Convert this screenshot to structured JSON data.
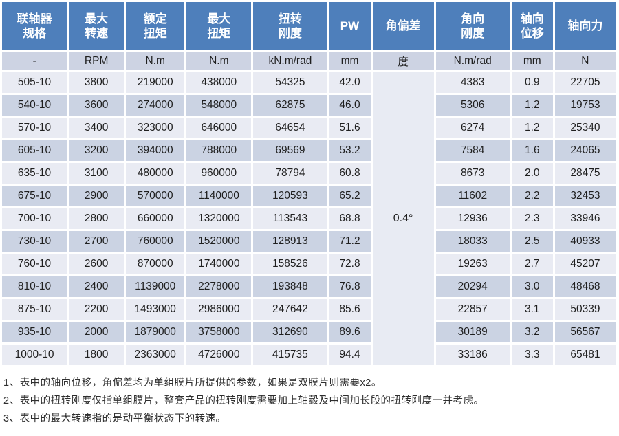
{
  "table": {
    "headers": [
      "联轴器\n规格",
      "最大\n转速",
      "额定\n扭矩",
      "最大\n扭矩",
      "扭转\n刚度",
      "PW",
      "角偏差",
      "角向\n刚度",
      "轴向\n位移",
      "轴向力"
    ],
    "units": [
      "-",
      "RPM",
      "N.m",
      "N.m",
      "kN.m/rad",
      "mm",
      "度",
      "N.m/rad",
      "mm",
      "N"
    ],
    "angular_deviation_value": "0.4°",
    "rows": [
      [
        "505-10",
        "3800",
        "219000",
        "438000",
        "54325",
        "42.0",
        "4383",
        "0.9",
        "22705"
      ],
      [
        "540-10",
        "3600",
        "274000",
        "548000",
        "62875",
        "46.0",
        "5306",
        "1.2",
        "19753"
      ],
      [
        "570-10",
        "3400",
        "323000",
        "646000",
        "64654",
        "51.6",
        "6274",
        "1.2",
        "25340"
      ],
      [
        "605-10",
        "3200",
        "394000",
        "788000",
        "69569",
        "53.2",
        "7584",
        "1.6",
        "24065"
      ],
      [
        "635-10",
        "3100",
        "480000",
        "960000",
        "78794",
        "60.8",
        "8673",
        "2.0",
        "28475"
      ],
      [
        "675-10",
        "2900",
        "570000",
        "1140000",
        "120593",
        "65.2",
        "11602",
        "2.2",
        "32453"
      ],
      [
        "700-10",
        "2800",
        "660000",
        "1320000",
        "113543",
        "68.8",
        "12936",
        "2.3",
        "33946"
      ],
      [
        "730-10",
        "2700",
        "760000",
        "1520000",
        "128913",
        "71.2",
        "18033",
        "2.5",
        "40933"
      ],
      [
        "760-10",
        "2600",
        "870000",
        "1740000",
        "158526",
        "72.8",
        "19263",
        "2.7",
        "45207"
      ],
      [
        "810-10",
        "2400",
        "1139000",
        "2278000",
        "193848",
        "76.8",
        "20294",
        "3.0",
        "48468"
      ],
      [
        "875-10",
        "2200",
        "1493000",
        "2986000",
        "247642",
        "85.6",
        "22857",
        "3.1",
        "50339"
      ],
      [
        "935-10",
        "2000",
        "1879000",
        "3758000",
        "312690",
        "89.6",
        "30189",
        "3.2",
        "56567"
      ],
      [
        "1000-10",
        "1800",
        "2363000",
        "4726000",
        "415735",
        "94.4",
        "33186",
        "3.3",
        "65481"
      ]
    ]
  },
  "notes": [
    "1、表中的轴向位移，角偏差均为单组膜片所提供的参数，如果是双膜片则需要x2。",
    "2、表中的扭转刚度仅指单组膜片，整套产品的扭转刚度需要加上轴毂及中间加长段的扭转刚度一并考虑。",
    "3、表中的最大转速指的是动平衡状态下的转速。"
  ],
  "colors": {
    "header_bg": "#4e7fbb",
    "header_text": "#ffffff",
    "unit_row_bg": "#cdd3e3",
    "row_light": "#e9ebf3",
    "row_dark": "#cbd3e3",
    "merged_cell_bg": "#e8ebf3",
    "cell_text": "#1f1f1f"
  }
}
